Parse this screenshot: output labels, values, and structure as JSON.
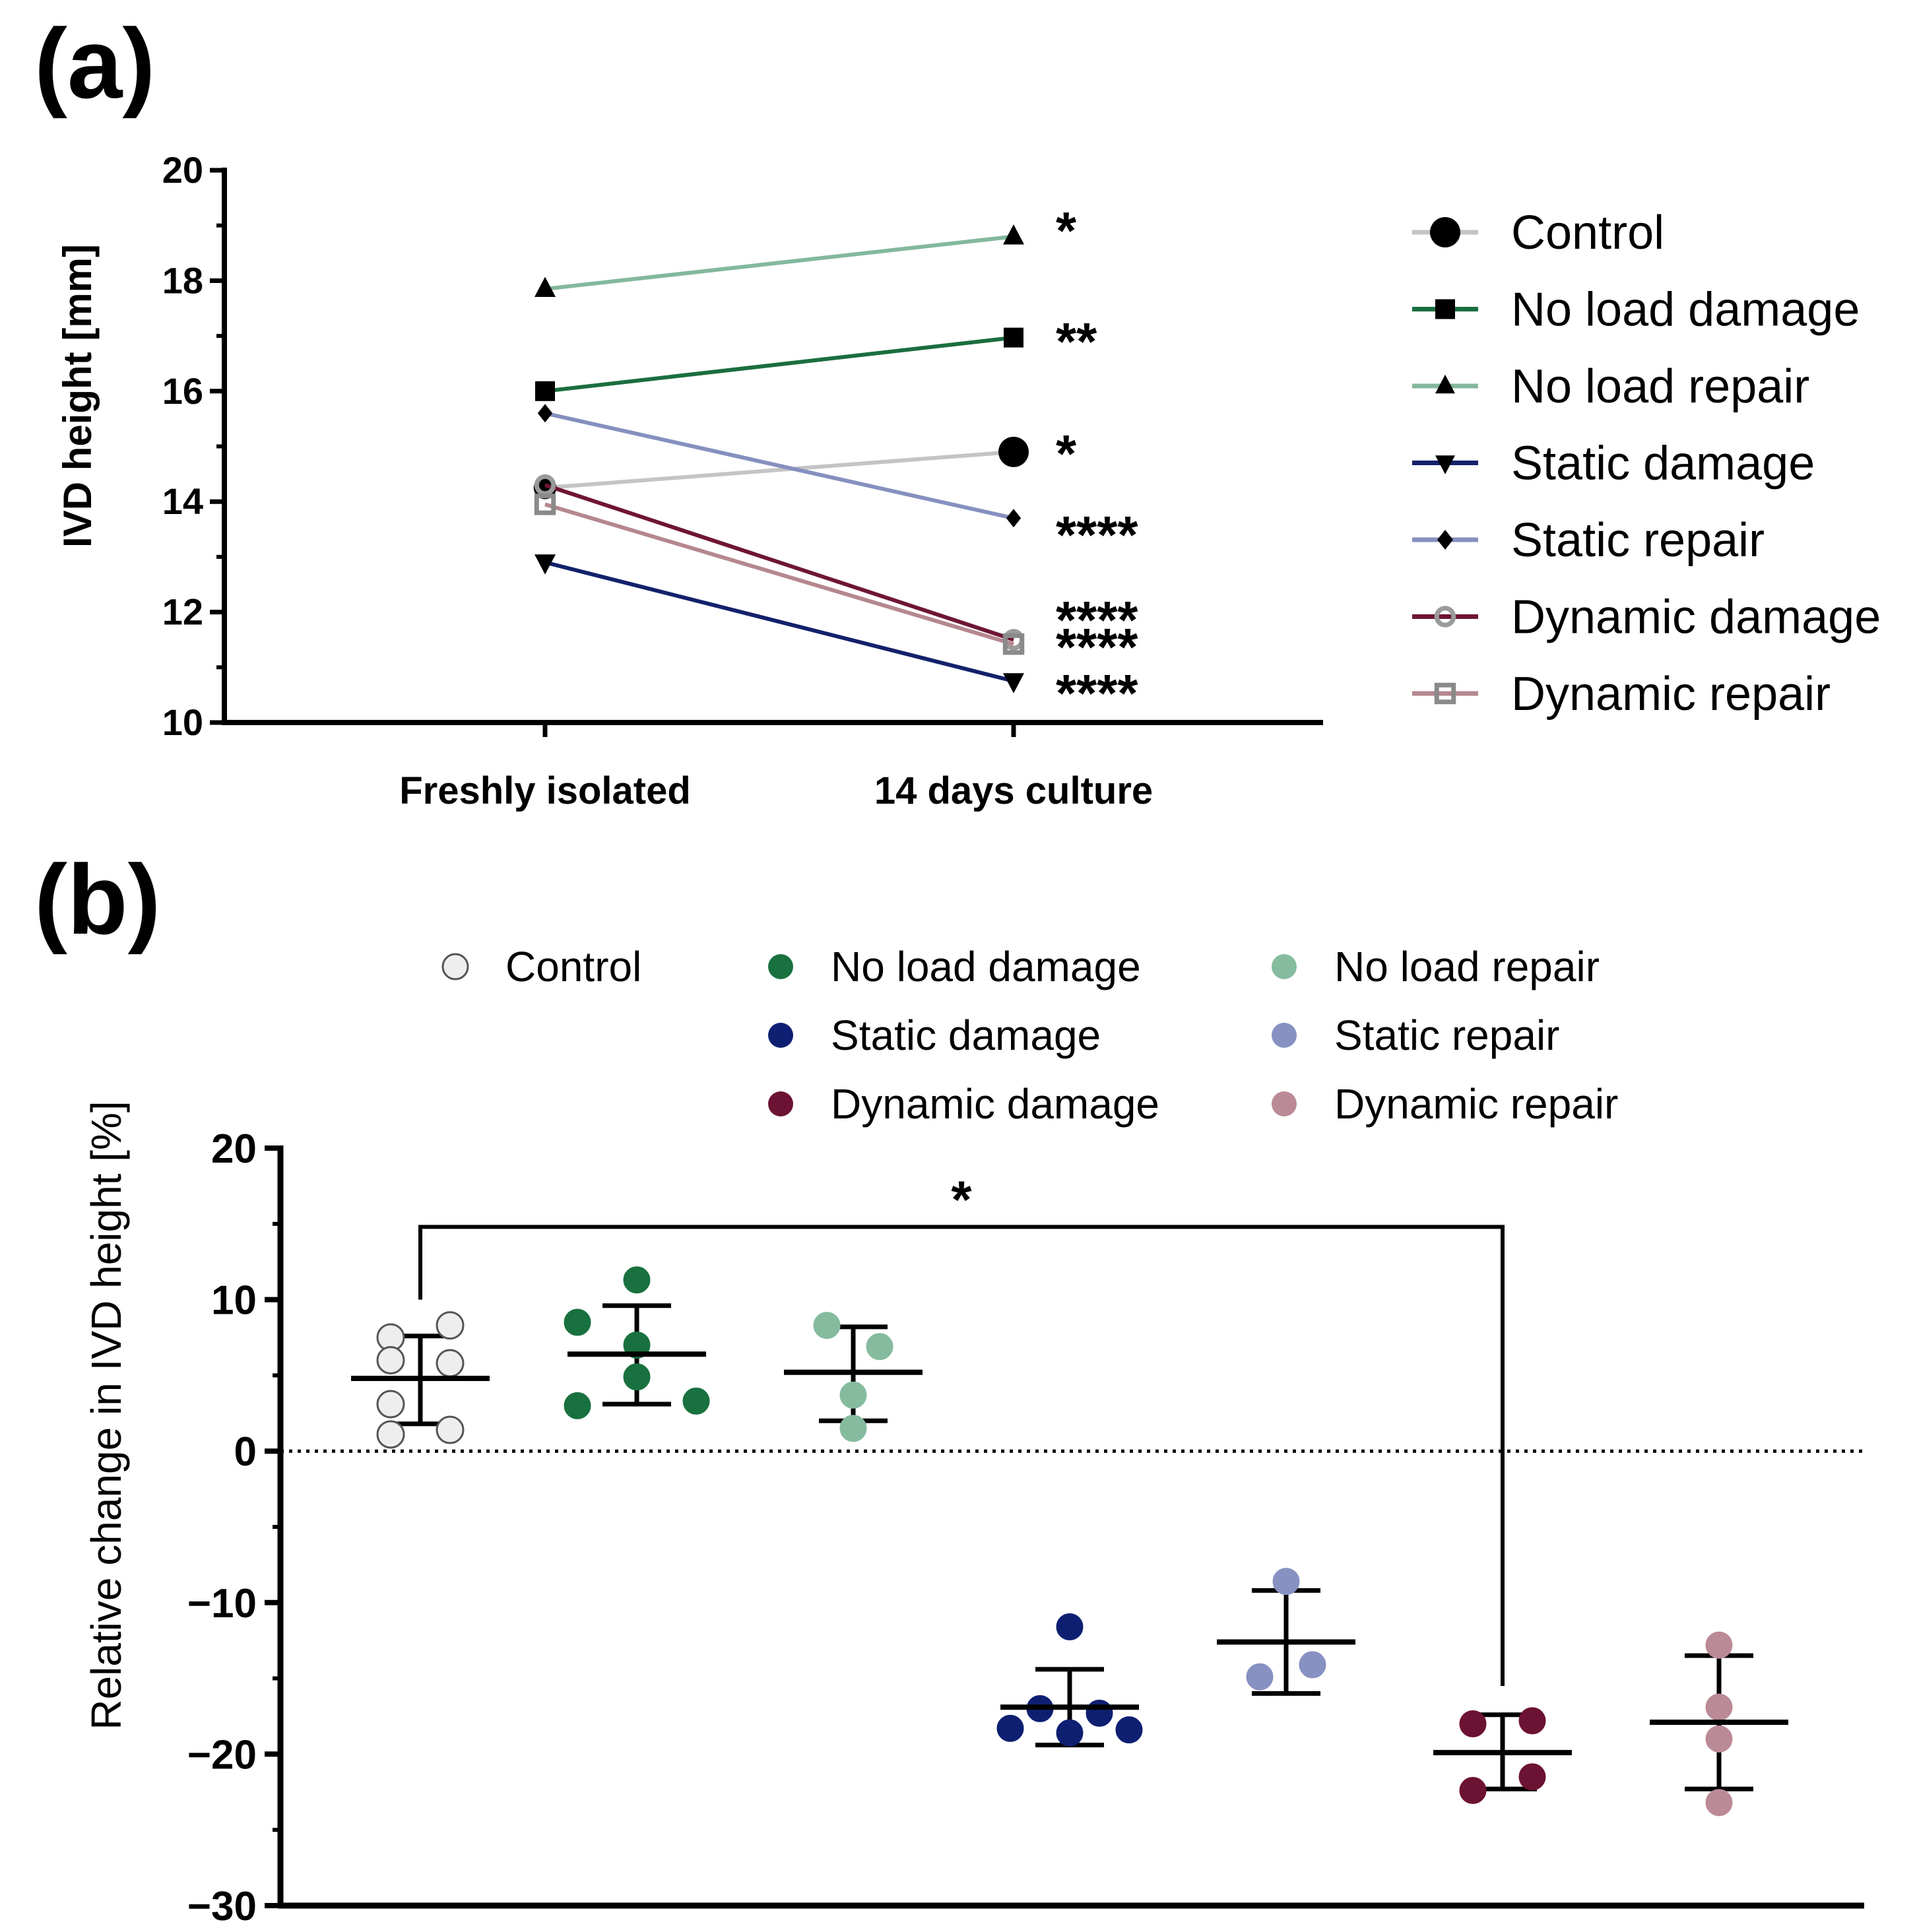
{
  "panels": {
    "a": {
      "label": "(a)"
    },
    "b": {
      "label": "(b)"
    }
  },
  "chart_data": [
    {
      "type": "line",
      "panel": "(a)",
      "ylabel": "IVD height [mm]",
      "xlabel": "",
      "categories": [
        "Freshly isolated",
        "14 days culture"
      ],
      "ylim": [
        10,
        20
      ],
      "yticks": [
        10,
        12,
        14,
        16,
        18,
        20
      ],
      "legend_position": "right",
      "series": [
        {
          "name": "Control",
          "color": "#c4c4c4",
          "marker": "circle",
          "marker_color": "#000000",
          "values": [
            14.25,
            14.9
          ],
          "significance": "*"
        },
        {
          "name": "No load damage",
          "color": "#1a6e3f",
          "marker": "square",
          "marker_color": "#000000",
          "values": [
            16.0,
            16.97
          ],
          "significance": "**"
        },
        {
          "name": "No load repair",
          "color": "#83b89d",
          "marker": "triangle-up",
          "marker_color": "#000000",
          "values": [
            17.85,
            18.8
          ],
          "significance": "*"
        },
        {
          "name": "Static damage",
          "color": "#13216b",
          "marker": "triangle-down",
          "marker_color": "#000000",
          "values": [
            12.9,
            10.75
          ],
          "significance": "****"
        },
        {
          "name": "Static repair",
          "color": "#8590bf",
          "marker": "diamond",
          "marker_color": "#000000",
          "values": [
            15.6,
            13.7
          ],
          "significance": "****"
        },
        {
          "name": "Dynamic damage",
          "color": "#6e1535",
          "marker": "open-circle",
          "marker_color": "#9a9a9a",
          "values": [
            14.3,
            11.5
          ],
          "significance": "****"
        },
        {
          "name": "Dynamic repair",
          "color": "#b5878f",
          "marker": "open-square",
          "marker_color": "#8a8a8a",
          "values": [
            13.95,
            11.42
          ],
          "significance": "****"
        }
      ]
    },
    {
      "type": "scatter",
      "panel": "(b)",
      "ylabel": "Relative change in IVD height [%]",
      "xlabel": "",
      "ylim": [
        -30,
        20
      ],
      "yticks": [
        -30,
        -20,
        -10,
        0,
        10,
        20
      ],
      "ytick_labels": [
        "−30",
        "−20",
        "−10",
        "0",
        "10",
        "20"
      ],
      "reference_line": 0,
      "legend_position": "top",
      "significance": {
        "from": "Control",
        "to": "Dynamic damage",
        "label": "*"
      },
      "groups": [
        {
          "name": "Control",
          "color": "#eeeeee",
          "points": [
            7.5,
            8.3,
            5.8,
            6.0,
            3.1,
            1.1,
            1.4
          ],
          "mean": 4.8,
          "sd_low": 1.8,
          "sd_high": 7.6
        },
        {
          "name": "No load damage",
          "color": "#19713f",
          "points": [
            11.3,
            8.5,
            7.0,
            4.9,
            3.0,
            3.3
          ],
          "mean": 6.4,
          "sd_low": 3.1,
          "sd_high": 9.6
        },
        {
          "name": "No load repair",
          "color": "#85bb9e",
          "points": [
            8.3,
            6.9,
            3.7,
            1.5
          ],
          "mean": 5.2,
          "sd_low": 2.0,
          "sd_high": 8.2
        },
        {
          "name": "Static damage",
          "color": "#0e1f72",
          "points": [
            -11.6,
            -17.0,
            -17.3,
            -18.3,
            -18.4,
            -18.6
          ],
          "mean": -16.9,
          "sd_low": -19.4,
          "sd_high": -14.4
        },
        {
          "name": "Static repair",
          "color": "#8791c2",
          "points": [
            -8.6,
            -14.1,
            -14.9
          ],
          "mean": -12.6,
          "sd_low": -16.0,
          "sd_high": -9.2
        },
        {
          "name": "Dynamic damage",
          "color": "#6c1233",
          "points": [
            -18.0,
            -17.8,
            -21.5,
            -22.4
          ],
          "mean": -19.9,
          "sd_low": -22.3,
          "sd_high": -17.4
        },
        {
          "name": "Dynamic repair",
          "color": "#bb8a97",
          "points": [
            -12.8,
            -16.9,
            -19.0,
            -23.2
          ],
          "mean": -17.9,
          "sd_low": -22.3,
          "sd_high": -13.5
        }
      ]
    }
  ]
}
